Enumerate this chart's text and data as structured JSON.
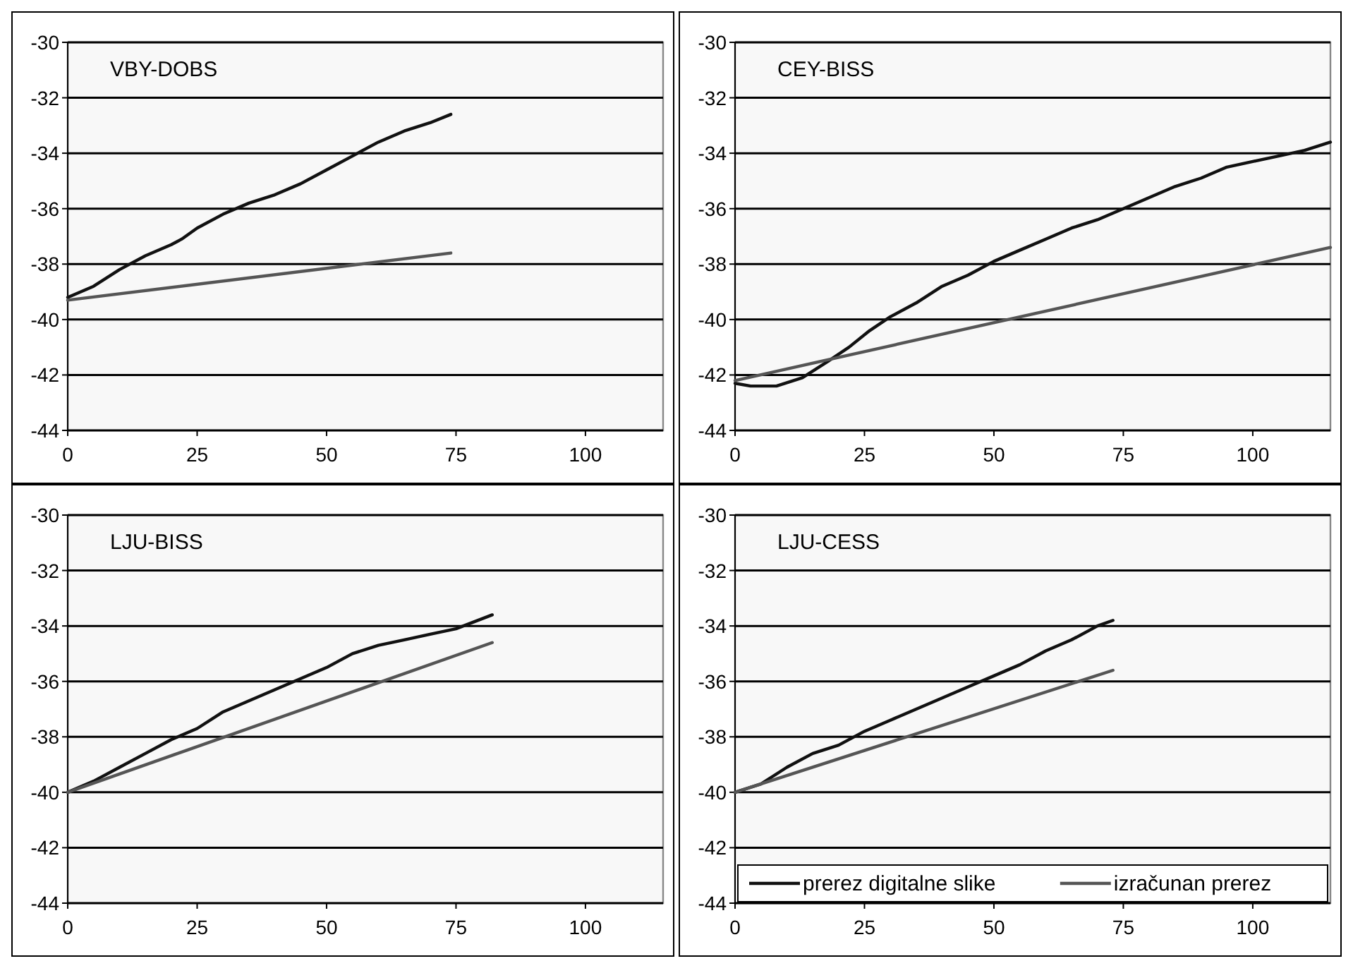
{
  "chart_data": [
    {
      "type": "line",
      "title": "VBY-DOBS",
      "xlim": [
        0,
        115
      ],
      "xticks": [
        0,
        25,
        50,
        75,
        100
      ],
      "ylim": [
        -44,
        -30
      ],
      "yticks": [
        -44,
        -42,
        -40,
        -38,
        -36,
        -34,
        -32,
        -30
      ],
      "grid": "y",
      "legend": false,
      "series": [
        {
          "color": "#111111",
          "x": [
            0,
            5,
            10,
            15,
            20,
            22,
            25,
            30,
            35,
            40,
            45,
            50,
            55,
            60,
            65,
            70,
            74
          ],
          "values": [
            -39.2,
            -38.8,
            -38.2,
            -37.7,
            -37.3,
            -37.1,
            -36.7,
            -36.2,
            -35.8,
            -35.5,
            -35.1,
            -34.6,
            -34.1,
            -33.6,
            -33.2,
            -32.9,
            -32.6
          ]
        },
        {
          "color": "#555555",
          "x": [
            0,
            74
          ],
          "values": [
            -39.3,
            -37.6
          ]
        }
      ]
    },
    {
      "type": "line",
      "title": "CEY-BISS",
      "xlim": [
        0,
        115
      ],
      "xticks": [
        0,
        25,
        50,
        75,
        100
      ],
      "ylim": [
        -44,
        -30
      ],
      "yticks": [
        -44,
        -42,
        -40,
        -38,
        -36,
        -34,
        -32,
        -30
      ],
      "grid": "y",
      "legend": false,
      "series": [
        {
          "color": "#111111",
          "x": [
            0,
            3,
            8,
            13,
            18,
            22,
            26,
            30,
            35,
            40,
            45,
            50,
            55,
            60,
            65,
            70,
            75,
            80,
            85,
            90,
            95,
            100,
            105,
            110,
            115
          ],
          "values": [
            -42.3,
            -42.4,
            -42.4,
            -42.1,
            -41.5,
            -41.0,
            -40.4,
            -39.9,
            -39.4,
            -38.8,
            -38.4,
            -37.9,
            -37.5,
            -37.1,
            -36.7,
            -36.4,
            -36.0,
            -35.6,
            -35.2,
            -34.9,
            -34.5,
            -34.3,
            -34.1,
            -33.9,
            -33.6
          ]
        },
        {
          "color": "#555555",
          "x": [
            0,
            115
          ],
          "values": [
            -42.2,
            -37.4
          ]
        }
      ]
    },
    {
      "type": "line",
      "title": "LJU-BISS",
      "xlim": [
        0,
        115
      ],
      "xticks": [
        0,
        25,
        50,
        75,
        100
      ],
      "ylim": [
        -44,
        -30
      ],
      "yticks": [
        -44,
        -42,
        -40,
        -38,
        -36,
        -34,
        -32,
        -30
      ],
      "grid": "y",
      "legend": false,
      "series": [
        {
          "color": "#111111",
          "x": [
            0,
            5,
            10,
            15,
            20,
            25,
            30,
            35,
            40,
            45,
            50,
            55,
            60,
            65,
            70,
            75,
            82
          ],
          "values": [
            -40,
            -39.6,
            -39.1,
            -38.6,
            -38.1,
            -37.7,
            -37.1,
            -36.7,
            -36.3,
            -35.9,
            -35.5,
            -35.0,
            -34.7,
            -34.5,
            -34.3,
            -34.1,
            -33.6
          ]
        },
        {
          "color": "#555555",
          "x": [
            0,
            82
          ],
          "values": [
            -40,
            -34.6
          ]
        }
      ]
    },
    {
      "type": "line",
      "title": "LJU-CESS",
      "xlim": [
        0,
        115
      ],
      "xticks": [
        0,
        25,
        50,
        75,
        100
      ],
      "ylim": [
        -44,
        -30
      ],
      "yticks": [
        -44,
        -42,
        -40,
        -38,
        -36,
        -34,
        -32,
        -30
      ],
      "grid": "y",
      "legend": "bottom",
      "series": [
        {
          "name": "prerez digitalne slike",
          "color": "#111111",
          "x": [
            0,
            5,
            10,
            15,
            20,
            25,
            30,
            35,
            40,
            45,
            50,
            55,
            60,
            65,
            70,
            73
          ],
          "values": [
            -40,
            -39.7,
            -39.1,
            -38.6,
            -38.3,
            -37.8,
            -37.4,
            -37.0,
            -36.6,
            -36.2,
            -35.8,
            -35.4,
            -34.9,
            -34.5,
            -34.0,
            -33.8
          ]
        },
        {
          "name": "izračunan prerez",
          "color": "#555555",
          "x": [
            0,
            73
          ],
          "values": [
            -40,
            -35.6
          ]
        }
      ]
    }
  ]
}
